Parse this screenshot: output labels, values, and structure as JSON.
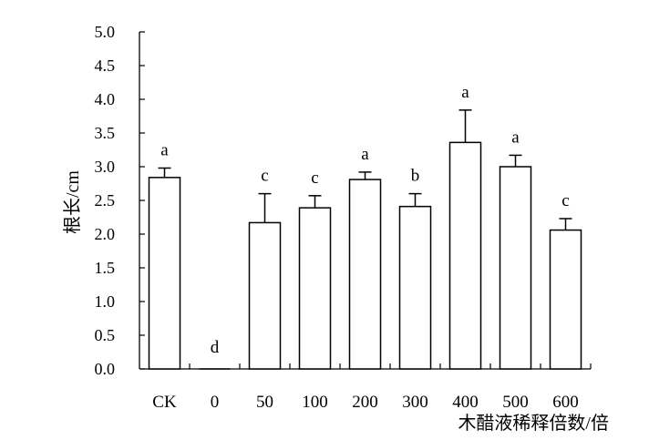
{
  "chart_data": {
    "type": "bar",
    "ylabel": "根长/cm",
    "xlabel": "木醋液稀释倍数/倍",
    "ylim": [
      0,
      5.0
    ],
    "yticks": [
      "0.0",
      "0.5",
      "1.0",
      "1.5",
      "2.0",
      "2.5",
      "3.0",
      "3.5",
      "4.0",
      "4.5",
      "5.0"
    ],
    "categories": [
      "CK",
      "0",
      "50",
      "100",
      "200",
      "300",
      "400",
      "500",
      "600"
    ],
    "values": [
      2.84,
      0.0,
      2.17,
      2.39,
      2.81,
      2.41,
      3.36,
      3.0,
      2.06
    ],
    "errors": [
      0.14,
      0.0,
      0.43,
      0.18,
      0.11,
      0.19,
      0.48,
      0.17,
      0.17
    ],
    "significance": [
      "a",
      "d",
      "c",
      "c",
      "a",
      "b",
      "a",
      "a",
      "c"
    ],
    "bar_fill": "#ffffff",
    "bar_stroke": "#000000",
    "grid": false,
    "legend": "none"
  }
}
